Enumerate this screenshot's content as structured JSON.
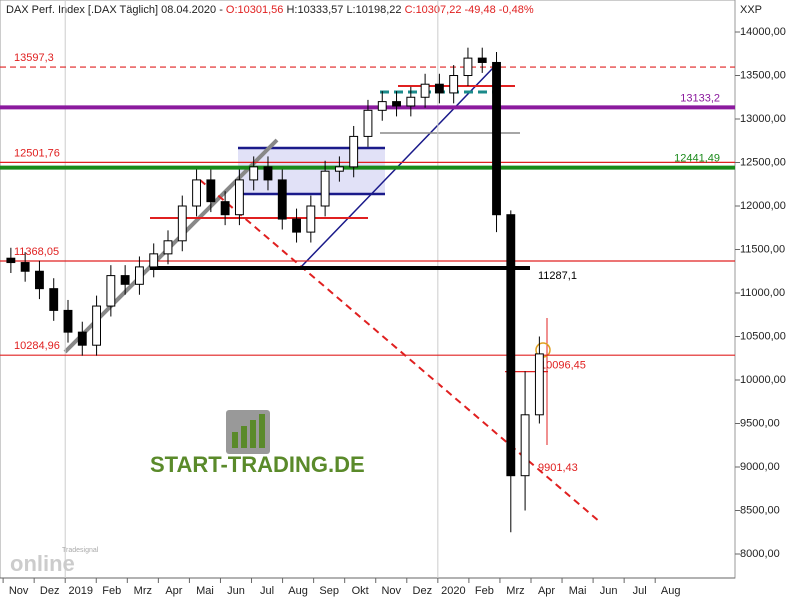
{
  "header": {
    "name": "DAX Perf. Index [.DAX  Täglich] 08.04.2020 -",
    "open": "O:10301,56",
    "high": "H:10333,57",
    "low": "L:10198,22",
    "close": "C:10307,22",
    "change": "-49,48",
    "change_pct": "-0,48%"
  },
  "logo": {
    "text": "START-TRADING.DE",
    "watermark_top": "Tradesignal",
    "watermark": "online"
  },
  "chart_data": {
    "type": "candlestick",
    "axis_unit": "XXP",
    "x": [
      0.25,
      0.71,
      1.17,
      1.63,
      2.09,
      2.55,
      3.01,
      3.47,
      3.93,
      4.39,
      4.85,
      5.31,
      5.77,
      6.23,
      6.69,
      7.15,
      7.61,
      8.07,
      8.53,
      8.99,
      9.45,
      9.91,
      10.37,
      10.83,
      11.29,
      11.75,
      12.21,
      12.67,
      13.13,
      13.59,
      14.05,
      14.51,
      14.97,
      15.43,
      15.89,
      16.35,
      16.81,
      17.27
    ],
    "open": [
      11400,
      11350,
      11250,
      11050,
      10800,
      10550,
      10400,
      10850,
      11200,
      11100,
      11300,
      11450,
      11600,
      12000,
      12300,
      12050,
      11900,
      12300,
      12450,
      12300,
      11850,
      11700,
      12000,
      12400,
      12450,
      12800,
      13100,
      13200,
      13150,
      13250,
      13400,
      13300,
      13500,
      13700,
      13650,
      11900,
      8900,
      9600
    ],
    "high": [
      11520,
      11470,
      11370,
      11170,
      10920,
      10670,
      10970,
      11320,
      11320,
      11420,
      11570,
      11720,
      12120,
      12420,
      12420,
      12170,
      12420,
      12570,
      12570,
      12420,
      11970,
      12120,
      12520,
      12570,
      12920,
      13220,
      13320,
      13320,
      13370,
      13520,
      13520,
      13620,
      13820,
      13820,
      13770,
      11950,
      10100,
      10500
    ],
    "low": [
      11230,
      11130,
      10930,
      10680,
      10430,
      10280,
      10280,
      10730,
      10980,
      10980,
      11180,
      11330,
      11480,
      11880,
      11930,
      11780,
      11780,
      12180,
      12180,
      11730,
      11580,
      11580,
      11880,
      12280,
      12330,
      12680,
      12980,
      13030,
      13030,
      13130,
      13180,
      13180,
      13380,
      13530,
      11700,
      8250,
      8500,
      9500
    ],
    "close": [
      11350,
      11250,
      11050,
      10800,
      10550,
      10400,
      10850,
      11200,
      11100,
      11300,
      11450,
      11600,
      12000,
      12300,
      12050,
      11900,
      12300,
      12450,
      12300,
      11850,
      11700,
      12000,
      12400,
      12450,
      12800,
      13100,
      13200,
      13150,
      13250,
      13400,
      13300,
      13500,
      13700,
      13650,
      11900,
      8900,
      9600,
      10300
    ],
    "up_color": "#ffffff",
    "down_color": "#000000",
    "xlim": [
      -0.1,
      23.57
    ],
    "xticks": [
      {
        "value": 0,
        "label": "Nov"
      },
      {
        "value": 1,
        "label": "Dez"
      },
      {
        "value": 2,
        "label": "2019"
      },
      {
        "value": 3,
        "label": "Feb"
      },
      {
        "value": 4,
        "label": "Mrz"
      },
      {
        "value": 5,
        "label": "Apr"
      },
      {
        "value": 6,
        "label": "Mai"
      },
      {
        "value": 7,
        "label": "Jun"
      },
      {
        "value": 8,
        "label": "Jul"
      },
      {
        "value": 9,
        "label": "Aug"
      },
      {
        "value": 10,
        "label": "Sep"
      },
      {
        "value": 11,
        "label": "Okt"
      },
      {
        "value": 12,
        "label": "Nov"
      },
      {
        "value": 13,
        "label": "Dez"
      },
      {
        "value": 14,
        "label": "2020"
      },
      {
        "value": 15,
        "label": "Feb"
      },
      {
        "value": 16,
        "label": "Mrz"
      },
      {
        "value": 17,
        "label": "Apr"
      },
      {
        "value": 18,
        "label": "Mai"
      },
      {
        "value": 19,
        "label": "Jun"
      },
      {
        "value": 20,
        "label": "Jul"
      },
      {
        "value": 21,
        "label": "Aug"
      }
    ],
    "ylim": [
      7724,
      14368
    ],
    "yticks": [
      {
        "value": 8000,
        "label": "8000,00"
      },
      {
        "value": 8500,
        "label": "8500,00"
      },
      {
        "value": 9000,
        "label": "9000,00"
      },
      {
        "value": 9500,
        "label": "9500,00"
      },
      {
        "value": 10000,
        "label": "10000,00"
      },
      {
        "value": 10500,
        "label": "10500,00"
      },
      {
        "value": 11000,
        "label": "11000,00"
      },
      {
        "value": 11500,
        "label": "11500,00"
      },
      {
        "value": 12000,
        "label": "12000,00"
      },
      {
        "value": 12500,
        "label": "12500,00"
      },
      {
        "value": 13000,
        "label": "13000,00"
      },
      {
        "value": 13500,
        "label": "13500,00"
      },
      {
        "value": 14000,
        "label": "14000,00"
      }
    ],
    "levels": [
      {
        "value": 13597.3,
        "label": "13597,3",
        "color": "#e02020",
        "style": "dashed"
      },
      {
        "value": 13133.2,
        "label": "13133,2",
        "color": "#8b1a9e",
        "style": "thick"
      },
      {
        "value": 12501.76,
        "label": "12501,76",
        "color": "#e02020",
        "style": "solid"
      },
      {
        "value": 12441.49,
        "label": "12441,49",
        "color": "#1a8a1a",
        "style": "thick"
      },
      {
        "value": 11368.05,
        "label": "11368,05",
        "color": "#e02020",
        "style": "solid"
      },
      {
        "value": 11287.1,
        "label": "11287,1",
        "color": "#000000",
        "style": "thick"
      },
      {
        "value": 10284.96,
        "label": "10284,96",
        "color": "#e02020",
        "style": "solid"
      },
      {
        "value": 10096.45,
        "label": "10096,45",
        "color": "#e02020",
        "style": "short"
      }
    ],
    "annotations": [
      {
        "label": "9901,43"
      }
    ]
  }
}
